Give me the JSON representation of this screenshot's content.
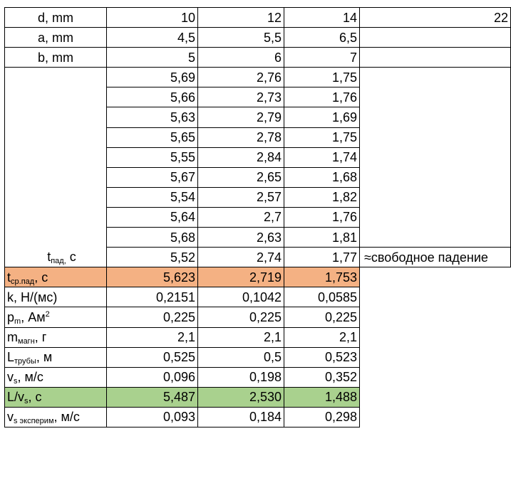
{
  "header_rows": [
    {
      "label": "d, mm",
      "values": [
        "10",
        "12",
        "14"
      ],
      "extra": "22"
    },
    {
      "label": "a, mm",
      "values": [
        "4,5",
        "5,5",
        "6,5"
      ],
      "extra": ""
    },
    {
      "label": "b, mm",
      "values": [
        "5",
        "6",
        "7"
      ],
      "extra": ""
    }
  ],
  "fall_times": [
    [
      "5,69",
      "2,76",
      "1,75"
    ],
    [
      "5,66",
      "2,73",
      "1,76"
    ],
    [
      "5,63",
      "2,79",
      "1,69"
    ],
    [
      "5,65",
      "2,78",
      "1,75"
    ],
    [
      "5,55",
      "2,84",
      "1,74"
    ],
    [
      "5,67",
      "2,65",
      "1,68"
    ],
    [
      "5,54",
      "2,57",
      "1,82"
    ],
    [
      "5,64",
      "2,7",
      "1,76"
    ],
    [
      "5,68",
      "2,63",
      "1,81"
    ],
    [
      "5,52",
      "2,74",
      "1,77"
    ]
  ],
  "fall_label": {
    "main": "t",
    "sub": "пад,",
    "tail": " с"
  },
  "free_fall_note": "≈свободное падение",
  "result_rows": [
    {
      "key": "t-avg",
      "main": "t",
      "sub": "ср.пад",
      "tail": ", с",
      "sup": "",
      "values": [
        "5,623",
        "2,719",
        "1,753"
      ],
      "highlight": "orange"
    },
    {
      "key": "k",
      "main": "k, Н/(мс)",
      "sub": "",
      "tail": "",
      "sup": "",
      "values": [
        "0,2151",
        "0,1042",
        "0,0585"
      ],
      "highlight": ""
    },
    {
      "key": "pm",
      "main": "p",
      "sub": "m",
      "tail": ", Ам",
      "sup": "2",
      "values": [
        "0,225",
        "0,225",
        "0,225"
      ],
      "highlight": ""
    },
    {
      "key": "mass",
      "main": "m",
      "sub": "магн",
      "tail": ", г",
      "sup": "",
      "values": [
        "2,1",
        "2,1",
        "2,1"
      ],
      "highlight": ""
    },
    {
      "key": "length",
      "main": "L",
      "sub": "трубы",
      "tail": ", м",
      "sup": "",
      "values": [
        "0,525",
        "0,5",
        "0,523"
      ],
      "highlight": ""
    },
    {
      "key": "vs",
      "main": "v",
      "sub": "s",
      "tail": ", м/с",
      "sup": "",
      "values": [
        "0,096",
        "0,198",
        "0,352"
      ],
      "highlight": ""
    },
    {
      "key": "l-over-vs",
      "main": "L/v",
      "sub": "s",
      "tail": ", с",
      "sup": "",
      "values": [
        "5,487",
        "2,530",
        "1,488"
      ],
      "highlight": "green"
    },
    {
      "key": "vs-exp",
      "main": "v",
      "sub": "s эксперим",
      "tail": ", м/с",
      "sup": "",
      "values": [
        "0,093",
        "0,184",
        "0,298"
      ],
      "highlight": ""
    }
  ],
  "colors": {
    "orange": "#f4b183",
    "green": "#a9d18e"
  }
}
